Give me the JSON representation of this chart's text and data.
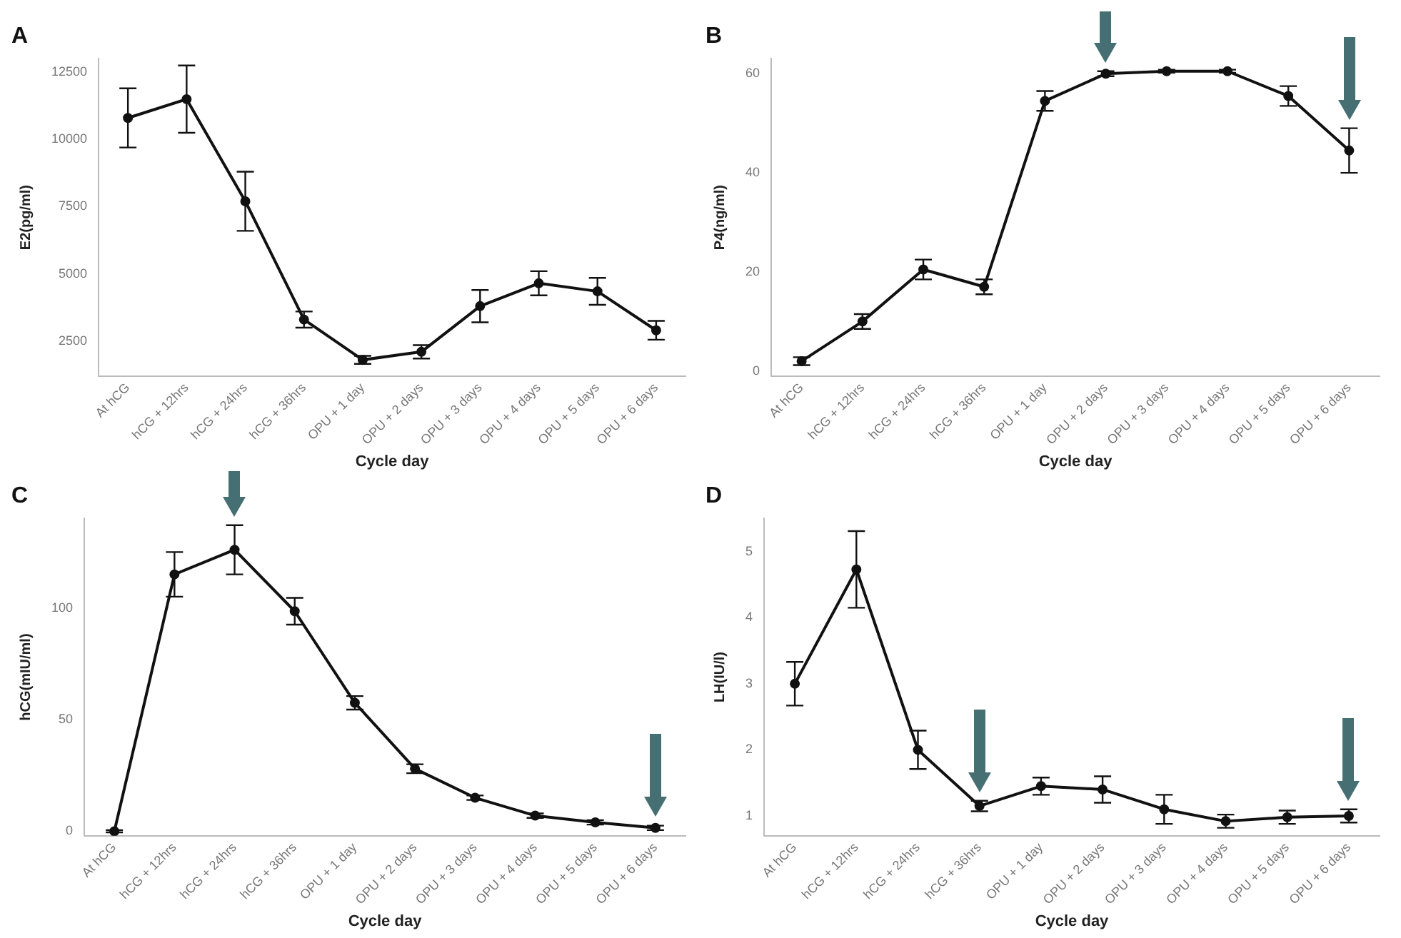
{
  "chart_data": [
    {
      "type": "line",
      "title": "A",
      "xlabel": "Cycle day",
      "ylabel": "E2(pg/ml)",
      "categories": [
        "At hCG",
        "hCG + 12hrs",
        "hCG + 24hrs",
        "hCG + 36hrs",
        "OPU + 1 day",
        "OPU + 2 days",
        "OPU + 3 days",
        "OPU + 4 days",
        "OPU + 5 days",
        "OPU + 6 days"
      ],
      "values": [
        10800,
        11500,
        7700,
        3300,
        1800,
        2100,
        3800,
        4650,
        4350,
        2900
      ],
      "errors": [
        1100,
        1250,
        1100,
        300,
        150,
        250,
        600,
        450,
        500,
        350
      ],
      "color": "#111111",
      "ylim": [
        1200,
        13000
      ],
      "yticks": [
        2500,
        5000,
        7500,
        10000,
        12500
      ],
      "grid": false,
      "marker": "circle",
      "line_style": "solid"
    },
    {
      "type": "line",
      "title": "B",
      "xlabel": "Cycle day",
      "ylabel": "P4(ng/ml)",
      "categories": [
        "At hCG",
        "hCG + 12hrs",
        "hCG + 24hrs",
        "hCG + 36hrs",
        "OPU + 1 day",
        "OPU + 2 days",
        "OPU + 3 days",
        "OPU + 4 days",
        "OPU + 5 days",
        "OPU + 6 days"
      ],
      "values": [
        2,
        10,
        20.5,
        17,
        54.5,
        60,
        60.5,
        60.5,
        55.5,
        44.5
      ],
      "errors": [
        0.8,
        1.5,
        2,
        1.5,
        2,
        0.5,
        0.3,
        0.3,
        2,
        4.5
      ],
      "color": "#111111",
      "ylim": [
        -1,
        63
      ],
      "yticks": [
        0,
        20,
        40,
        60
      ],
      "grid": false,
      "marker": "circle",
      "line_style": "solid"
    },
    {
      "type": "line",
      "title": "C",
      "xlabel": "Cycle day",
      "ylabel": "hCG(mIU/ml)",
      "categories": [
        "At hCG",
        "hCG + 12hrs",
        "hCG + 24hrs",
        "hCG + 36hrs",
        "OPU + 1 day",
        "OPU + 2 days",
        "OPU + 3 days",
        "OPU + 4 days",
        "OPU + 5 days",
        "OPU + 6 days"
      ],
      "values": [
        0,
        115,
        126,
        98.5,
        57.5,
        28,
        15,
        7,
        4,
        1.5
      ],
      "errors": [
        0.5,
        10,
        11,
        6,
        3,
        2,
        1,
        1,
        1,
        1
      ],
      "color": "#111111",
      "ylim": [
        -2,
        140
      ],
      "yticks": [
        0,
        50,
        100
      ],
      "grid": false,
      "marker": "circle",
      "line_style": "solid"
    },
    {
      "type": "line",
      "title": "D",
      "xlabel": "Cycle day",
      "ylabel": "LH(IU/l)",
      "categories": [
        "At hCG",
        "hCG + 12hrs",
        "hCG + 24hrs",
        "hCG + 36hrs",
        "OPU + 1 day",
        "OPU + 2 days",
        "OPU + 3 days",
        "OPU + 4 days",
        "OPU + 5 days",
        "OPU + 6 days"
      ],
      "values": [
        3,
        4.73,
        2,
        1.15,
        1.45,
        1.4,
        1.1,
        0.92,
        0.98,
        1
      ],
      "errors": [
        0.33,
        0.58,
        0.29,
        0.08,
        0.13,
        0.2,
        0.22,
        0.1,
        0.1,
        0.1
      ],
      "color": "#111111",
      "ylim": [
        0.7,
        5.5
      ],
      "yticks": [
        1,
        2,
        3,
        4,
        5
      ],
      "grid": false,
      "marker": "circle",
      "line_style": "solid"
    }
  ]
}
